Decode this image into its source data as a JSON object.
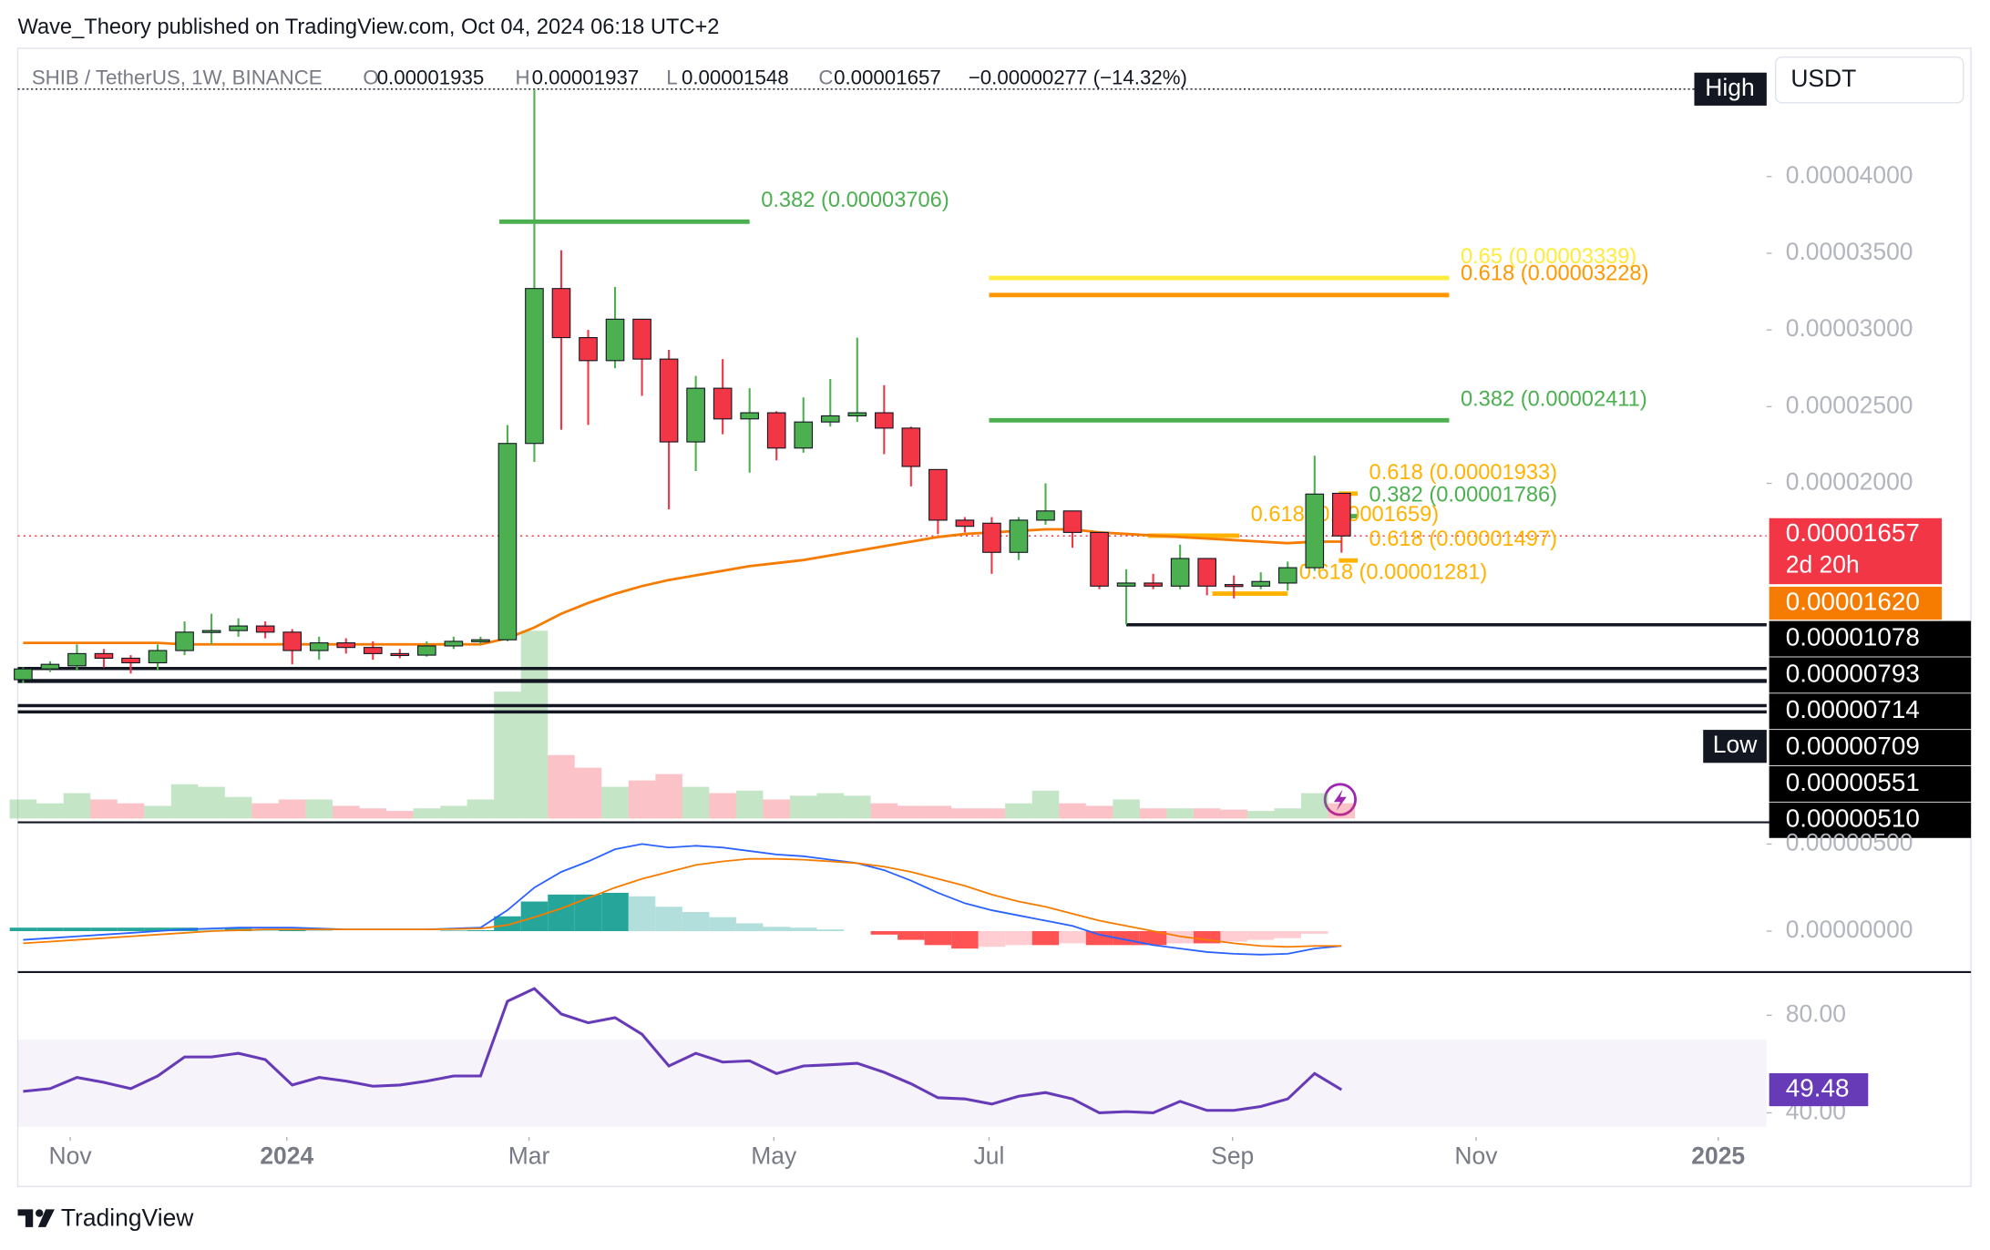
{
  "chart_data": {
    "type": "candlestick",
    "published": "Wave_Theory published on TradingView.com, Oct 04, 2024 06:18 UTC+2",
    "title": "SHIB / TetherUS, 1W, BINANCE",
    "legend_keys": [
      "O",
      "H",
      "L",
      "C"
    ],
    "change": "−0.00000277 (−14.32%)",
    "currency": "USDT",
    "brand": "TradingView",
    "high_label": "High",
    "low_label": "Low",
    "colors": {
      "up": "#4caf50",
      "down": "#f23645"
    },
    "xlim": [
      -0.2,
      64.8
    ],
    "xticks": [
      {
        "value": 1.75,
        "label": "Nov"
      },
      {
        "value": 9.8,
        "label": "2024"
      },
      {
        "value": 18.8,
        "label": "Mar"
      },
      {
        "value": 27.9,
        "label": "May"
      },
      {
        "value": 35.9,
        "label": "Jul"
      },
      {
        "value": 44.95,
        "label": "Sep"
      },
      {
        "value": 54.0,
        "label": "Nov"
      },
      {
        "value": 63.0,
        "label": "2025"
      }
    ],
    "ylim": [
      -2.1e-06,
      4.82e-05
    ],
    "yticks": [
      {
        "value": 4e-05,
        "label": "0.00004000"
      },
      {
        "value": 3.5e-05,
        "label": "0.00003500"
      },
      {
        "value": 3e-05,
        "label": "0.00003000"
      },
      {
        "value": 2.5e-05,
        "label": "0.00002500"
      },
      {
        "value": 2e-05,
        "label": "0.00002000"
      }
    ],
    "open": [
      7.2e-06,
      7.9e-06,
      8.1e-06,
      8.9e-06,
      8.6e-06,
      8.3e-06,
      9.1e-06,
      1.03e-05,
      1.04e-05,
      1.07e-05,
      1.03e-05,
      9.1e-06,
      9.6e-06,
      9.3e-06,
      8.9e-06,
      8.8e-06,
      9.4e-06,
      9.7e-06,
      9.8e-06,
      2.26e-05,
      3.27e-05,
      2.95e-05,
      2.8e-05,
      3.07e-05,
      2.81e-05,
      2.27e-05,
      2.62e-05,
      2.42e-05,
      2.46e-05,
      2.23e-05,
      2.4e-05,
      2.44e-05,
      2.46e-05,
      2.36e-05,
      2.09e-05,
      1.76e-05,
      1.74e-05,
      1.55e-05,
      1.76e-05,
      1.82e-05,
      1.68e-05,
      1.33e-05,
      1.35e-05,
      1.33e-05,
      1.51e-05,
      1.34e-05,
      1.33e-05,
      1.35e-05,
      1.45e-05,
      1.935e-05
    ],
    "high": [
      8e-06,
      8.4e-06,
      9.5e-06,
      9.2e-06,
      8.8e-06,
      9.5e-06,
      1.1e-05,
      1.15e-05,
      1.12e-05,
      1.1e-05,
      1.05e-05,
      1e-05,
      9.9e-06,
      9.7e-06,
      9.2e-06,
      9.7e-06,
      1e-05,
      1e-05,
      2.38e-05,
      4.57e-05,
      3.52e-05,
      3e-05,
      3.28e-05,
      3.07e-05,
      2.87e-05,
      2.7e-05,
      2.81e-05,
      2.62e-05,
      2.47e-05,
      2.56e-05,
      2.68e-05,
      2.95e-05,
      2.64e-05,
      2.37e-05,
      2.09e-05,
      1.78e-05,
      1.78e-05,
      1.78e-05,
      2e-05,
      1.82e-05,
      1.68e-05,
      1.44e-05,
      1.41e-05,
      1.6e-05,
      1.51e-05,
      1.4e-05,
      1.42e-05,
      1.49e-05,
      2.18e-05,
      1.937e-05
    ],
    "low": [
      7e-06,
      7.7e-06,
      7.8e-06,
      8e-06,
      7.6e-06,
      7.8e-06,
      8.8e-06,
      9.5e-06,
      1e-05,
      9.9e-06,
      8.2e-06,
      8.5e-06,
      8.9e-06,
      8.5e-06,
      8.6e-06,
      8.7e-06,
      9.2e-06,
      9.5e-06,
      9.7e-06,
      2.14e-05,
      2.35e-05,
      2.38e-05,
      2.75e-05,
      2.57e-05,
      1.83e-05,
      2.08e-05,
      2.32e-05,
      2.07e-05,
      2.15e-05,
      2.2e-05,
      2.37e-05,
      2.4e-05,
      2.19e-05,
      1.98e-05,
      1.67e-05,
      1.68e-05,
      1.41e-05,
      1.5e-05,
      1.73e-05,
      1.58e-05,
      1.31e-05,
      1.08e-05,
      1.31e-05,
      1.31e-05,
      1.27e-05,
      1.25e-05,
      1.31e-05,
      1.3e-05,
      1.43e-05,
      1.548e-05
    ],
    "close": [
      7.9e-06,
      8.2e-06,
      8.9e-06,
      8.6e-06,
      8.3e-06,
      9.1e-06,
      1.03e-05,
      1.04e-05,
      1.07e-05,
      1.03e-05,
      9.1e-06,
      9.6e-06,
      9.3e-06,
      8.9e-06,
      8.8e-06,
      9.4e-06,
      9.7e-06,
      9.8e-06,
      2.26e-05,
      3.27e-05,
      2.95e-05,
      2.8e-05,
      3.07e-05,
      2.81e-05,
      2.27e-05,
      2.62e-05,
      2.42e-05,
      2.46e-05,
      2.23e-05,
      2.4e-05,
      2.44e-05,
      2.46e-05,
      2.36e-05,
      2.11e-05,
      1.76e-05,
      1.72e-05,
      1.55e-05,
      1.76e-05,
      1.82e-05,
      1.68e-05,
      1.33e-05,
      1.35e-05,
      1.33e-05,
      1.51e-05,
      1.33e-05,
      1.33e-05,
      1.36e-05,
      1.45e-05,
      1.93e-05,
      1.657e-05
    ],
    "ema": {
      "color": "#f57c00",
      "values": [
        9.6e-06,
        9.6e-06,
        9.6e-06,
        9.6e-06,
        9.6e-06,
        9.6e-06,
        9.5e-06,
        9.5e-06,
        9.5e-06,
        9.5e-06,
        9.5e-06,
        9.5e-06,
        9.5e-06,
        9.5e-06,
        9.5e-06,
        9.5e-06,
        9.5e-06,
        9.5e-06,
        9.9e-06,
        1.06e-05,
        1.15e-05,
        1.22e-05,
        1.28e-05,
        1.33e-05,
        1.37e-05,
        1.4e-05,
        1.43e-05,
        1.46e-05,
        1.48e-05,
        1.5e-05,
        1.53e-05,
        1.56e-05,
        1.59e-05,
        1.62e-05,
        1.65e-05,
        1.67e-05,
        1.68e-05,
        1.69e-05,
        1.7e-05,
        1.7e-05,
        1.68e-05,
        1.67e-05,
        1.66e-05,
        1.65e-05,
        1.64e-05,
        1.63e-05,
        1.62e-05,
        1.61e-05,
        1.62e-05,
        1.62e-05
      ]
    },
    "fib_levels": [
      {
        "label": "0.382 (0.00003706)",
        "value": 3.706e-05,
        "color": "#4caf50",
        "from": 17.7,
        "to": 27.0
      },
      {
        "label": "0.65 (0.00003339)",
        "value": 3.339e-05,
        "color": "#ffeb3b",
        "from": 35.9,
        "to": 53.0
      },
      {
        "label": "0.618 (0.00003228)",
        "value": 3.228e-05,
        "color": "#ff9800",
        "from": 35.9,
        "to": 53.0
      },
      {
        "label": "0.382 (0.00002411)",
        "value": 2.411e-05,
        "color": "#4caf50",
        "from": 35.9,
        "to": 53.0
      },
      {
        "label": "0.618 (0.00001933)",
        "value": 1.933e-05,
        "color": "#ffb300",
        "from": 48.9,
        "to": 49.6
      },
      {
        "label": "0.382 (0.00001786)",
        "value": 1.786e-05,
        "color": "#4caf50",
        "from": 48.9,
        "to": 49.6
      },
      {
        "label": "0.618 (0.00001659)",
        "value": 1.659e-05,
        "color": "#ffb300",
        "from": 41.8,
        "to": 45.2
      },
      {
        "label": "0.618 (0.00001497)",
        "value": 1.497e-05,
        "color": "#ffb300",
        "from": 48.9,
        "to": 49.6
      },
      {
        "label": "0.618 (0.00001281)",
        "value": 1.281e-05,
        "color": "#ffb300",
        "from": 44.2,
        "to": 47.0
      }
    ],
    "support_levels": [
      {
        "value": 1.078e-05,
        "label": "0.00001078",
        "from": 41.0
      },
      {
        "value": 7.93e-06,
        "label": "0.00000793",
        "from": -0.2
      },
      {
        "value": 7.14e-06,
        "label": "0.00000714",
        "from": -0.2
      },
      {
        "value": 7.09e-06,
        "label": "0.00000709",
        "from": -0.2
      },
      {
        "value": 5.51e-06,
        "label": "0.00000551",
        "from": -0.2
      },
      {
        "value": 5.1e-06,
        "label": "0.00000510",
        "from": -0.2
      }
    ],
    "price_tags": [
      {
        "value": 1.657e-05,
        "label": "0.00001657",
        "sublabel": "2d 20h",
        "color": "#f23645"
      },
      {
        "value": 1.62e-05,
        "label": "0.00001620",
        "color": "#f57c00"
      }
    ],
    "volume": {
      "ylim": [
        0,
        150
      ],
      "values": [
        15,
        12,
        20,
        15,
        12,
        10,
        27,
        25,
        17,
        12,
        15,
        15,
        10,
        8,
        6,
        8,
        10,
        15,
        100,
        148,
        50,
        40,
        25,
        30,
        35,
        25,
        20,
        22,
        15,
        18,
        20,
        18,
        12,
        10,
        10,
        8,
        8,
        12,
        22,
        12,
        10,
        15,
        8,
        8,
        8,
        7,
        6,
        8,
        20,
        12
      ]
    },
    "macd": {
      "ylim": [
        -2.35e-06,
        6.1e-06
      ],
      "yticks": [
        {
          "value": 5e-06,
          "label": "0.00000500"
        },
        {
          "value": 0,
          "label": "0.00000000"
        }
      ],
      "macd": {
        "color": "#2962ff",
        "values": [
          -5e-07,
          -4e-07,
          -3e-07,
          -2e-07,
          -1e-07,
          0,
          1e-07,
          1.5e-07,
          2e-07,
          2e-07,
          2e-07,
          1.5e-07,
          1e-07,
          1e-07,
          1e-07,
          1e-07,
          1.5e-07,
          2e-07,
          1.2e-06,
          2.5e-06,
          3.4e-06,
          4e-06,
          4.7e-06,
          5e-06,
          4.8e-06,
          4.9e-06,
          4.8e-06,
          4.6e-06,
          4.4e-06,
          4.3e-06,
          4.1e-06,
          3.9e-06,
          3.5e-06,
          2.9e-06,
          2.2e-06,
          1.6e-06,
          1.2e-06,
          9e-07,
          6e-07,
          3e-07,
          -2e-07,
          -5e-07,
          -8e-07,
          -1e-06,
          -1.2e-06,
          -1.3e-06,
          -1.35e-06,
          -1.3e-06,
          -1e-06,
          -8.5e-07
        ]
      },
      "signal": {
        "color": "#f57c00",
        "values": [
          -7e-07,
          -6e-07,
          -5e-07,
          -4e-07,
          -3e-07,
          -2e-07,
          -1e-07,
          0,
          5e-08,
          1e-07,
          1e-07,
          1e-07,
          1e-07,
          1e-07,
          1e-07,
          1e-07,
          1.2e-07,
          1.5e-07,
          3.5e-07,
          8e-07,
          1.3e-06,
          1.9e-06,
          2.5e-06,
          3e-06,
          3.4e-06,
          3.8e-06,
          4e-06,
          4.15e-06,
          4.15e-06,
          4.1e-06,
          4e-06,
          3.9e-06,
          3.7e-06,
          3.4e-06,
          3e-06,
          2.6e-06,
          2.1e-06,
          1.7e-06,
          1.4e-06,
          1e-06,
          6e-07,
          3e-07,
          0,
          -3e-07,
          -5e-07,
          -7e-07,
          -8.5e-07,
          -9e-07,
          -8.5e-07,
          -8.5e-07
        ]
      },
      "histogram": [
        2e-07,
        2e-07,
        2e-07,
        2e-07,
        2e-07,
        2e-07,
        2e-07,
        1.5e-07,
        1.5e-07,
        1e-07,
        1e-07,
        5e-08,
        0,
        0,
        0,
        0,
        3e-08,
        5e-08,
        8.5e-07,
        1.7e-06,
        2.1e-06,
        2.1e-06,
        2.2e-06,
        2e-06,
        1.4e-06,
        1.1e-06,
        8e-07,
        4.5e-07,
        2.5e-07,
        2e-07,
        1e-07,
        0,
        -2e-07,
        -5e-07,
        -8e-07,
        -1e-06,
        -9e-07,
        -8e-07,
        -8e-07,
        -7e-07,
        -8e-07,
        -8e-07,
        -8e-07,
        -7e-07,
        -7e-07,
        -6e-07,
        -5e-07,
        -4e-07,
        -1.5e-07,
        0
      ]
    },
    "rsi": {
      "ylim": [
        33.2,
        95.6
      ],
      "yticks": [
        {
          "value": 80,
          "label": "80.00"
        },
        {
          "value": 40,
          "label": "40.00"
        }
      ],
      "band": [
        30,
        70
      ],
      "color": "#673ab7",
      "values": [
        48.8,
        49.9,
        54.5,
        52.5,
        49.9,
        55.1,
        62.9,
        62.9,
        64.4,
        61.8,
        51.4,
        54.5,
        53.0,
        50.9,
        51.4,
        53.0,
        55.1,
        55.1,
        85.7,
        90.9,
        80.5,
        76.9,
        79.0,
        72.2,
        59.2,
        64.4,
        60.8,
        61.3,
        56.1,
        59.2,
        59.7,
        60.3,
        56.6,
        51.9,
        46.2,
        45.7,
        43.6,
        46.8,
        48.3,
        45.7,
        40.0,
        40.5,
        40.0,
        44.7,
        41.0,
        41.0,
        42.6,
        45.7,
        56.1,
        49.48
      ]
    }
  }
}
